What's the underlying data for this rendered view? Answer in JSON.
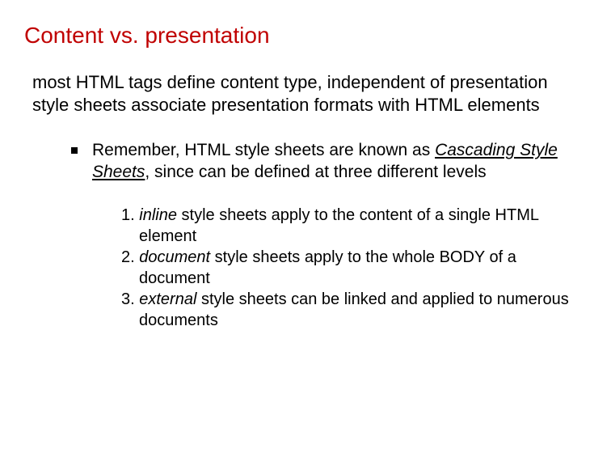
{
  "title": "Content vs. presentation",
  "paragraphs": {
    "p1": "most HTML tags define content type, independent of presentation",
    "p2": "style sheets associate presentation formats with HTML elements"
  },
  "bullet": {
    "leadin": "Remember, HTML style sheets are known as ",
    "term": "Cascading Style Sheets",
    "rest": ", since can be defined at three different levels"
  },
  "list": {
    "n1_prefix": "1. ",
    "n1_term": "inline",
    "n1_rest": " style sheets apply to the content of a single HTML element",
    "n2_prefix": "2. ",
    "n2_term": "document",
    "n2_rest": " style sheets apply to the whole BODY of a document",
    "n3_prefix": "3. ",
    "n3_term": "external",
    "n3_rest": " style sheets can be linked and applied to numerous documents"
  },
  "colors": {
    "title": "#c00000",
    "text": "#000000",
    "background": "#ffffff"
  },
  "fonts": {
    "title_size": 28,
    "body_size": 22,
    "bullet_size": 21,
    "list_size": 20
  }
}
